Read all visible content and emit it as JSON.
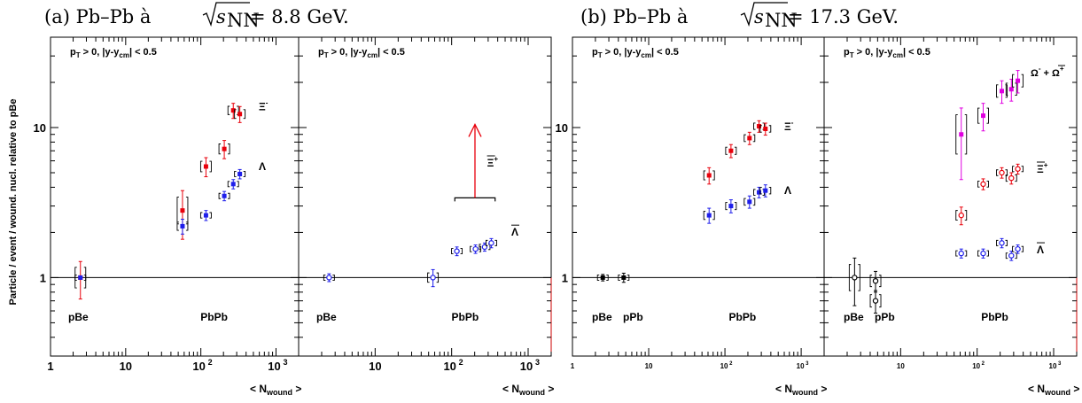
{
  "titles": {
    "a": {
      "prefix": "(a) Pb–Pb à ",
      "sqrt_s": "s",
      "sub": "NN",
      "value": "= 8.8 GeV."
    },
    "b": {
      "prefix": "(b) Pb–Pb à ",
      "sqrt_s": "s",
      "sub": "NN",
      "value": "= 17.3 GeV."
    }
  },
  "ylabel": "Particle / event / wound. nucl. relative to pBe",
  "xlabel": {
    "main": "< N",
    "sub": "wound",
    "end": " >"
  },
  "cut_label": {
    "pt": "p",
    "pt_sub": "T",
    "pt_rest": " > 0,   |y-y",
    "y_sub": "cm",
    "y_rest": "| < 0.5"
  },
  "ytick_labels": [
    "1",
    "10"
  ],
  "xtick_labels": {
    "one": "1",
    "ten": "10",
    "hund_base": "10",
    "hund_exp": "2",
    "thou_base": "10",
    "thou_exp": "3"
  },
  "colors": {
    "xi": "#e8000b",
    "lambda": "#1e1eea",
    "omega": "#e000e0",
    "black": "#000000",
    "ref_line_right": "#cc0000"
  },
  "chart_data": [
    {
      "type": "scatter",
      "panel": "a-left",
      "log_x": true,
      "log_y": true,
      "xlim": [
        1,
        2000
      ],
      "ylim": [
        0.3,
        40
      ],
      "species_labels": [
        {
          "text": "Ξ",
          "sup": "-"
        },
        {
          "text": "Λ",
          "sup": ""
        }
      ],
      "system_labels": [
        "pBe",
        "PbPb"
      ],
      "series": [
        {
          "name": "Ξ-",
          "color": "xi",
          "marker": "filled",
          "points": [
            {
              "x": 2.5,
              "y": 1.0,
              "err": 0.28
            },
            {
              "x": 57,
              "y": 2.8,
              "err": 1.0
            },
            {
              "x": 117,
              "y": 5.5,
              "err": 0.8
            },
            {
              "x": 205,
              "y": 7.2,
              "err": 1.0
            },
            {
              "x": 270,
              "y": 13.0,
              "err": 1.5
            },
            {
              "x": 330,
              "y": 12.3,
              "err": 1.5
            }
          ]
        },
        {
          "name": "Λ",
          "color": "lambda",
          "marker": "filled",
          "points": [
            {
              "x": 2.5,
              "y": 1.0,
              "err": 0.02
            },
            {
              "x": 57,
              "y": 2.2,
              "err": 0.25
            },
            {
              "x": 117,
              "y": 2.6,
              "err": 0.2
            },
            {
              "x": 205,
              "y": 3.5,
              "err": 0.25
            },
            {
              "x": 270,
              "y": 4.2,
              "err": 0.3
            },
            {
              "x": 330,
              "y": 4.9,
              "err": 0.35
            }
          ]
        }
      ]
    },
    {
      "type": "scatter",
      "panel": "a-right",
      "log_x": true,
      "log_y": true,
      "xlim": [
        1,
        2000
      ],
      "ylim": [
        0.3,
        40
      ],
      "species_labels": [
        {
          "text": "Ξ",
          "sup": "+"
        },
        {
          "text": "Λ",
          "sup": ""
        }
      ],
      "system_labels": [
        "pBe",
        "PbPb"
      ],
      "series": [
        {
          "name": "anti-Λ",
          "color": "lambda",
          "marker": "open",
          "points": [
            {
              "x": 2.5,
              "y": 1.0,
              "err": 0.06
            },
            {
              "x": 57,
              "y": 1.0,
              "err": 0.13
            },
            {
              "x": 117,
              "y": 1.5,
              "err": 0.1
            },
            {
              "x": 205,
              "y": 1.55,
              "err": 0.1
            },
            {
              "x": 270,
              "y": 1.6,
              "err": 0.1
            },
            {
              "x": 330,
              "y": 1.7,
              "err": 0.12
            }
          ]
        }
      ],
      "lower_limit": {
        "name": "anti-Ξ+",
        "x_range": [
          110,
          370
        ],
        "y": 3.4,
        "y_arrow_top": 10.5
      }
    },
    {
      "type": "scatter",
      "panel": "b-left",
      "log_x": true,
      "log_y": true,
      "xlim": [
        1,
        2000
      ],
      "ylim": [
        0.3,
        40
      ],
      "species_labels": [
        {
          "text": "Ξ",
          "sup": "-"
        },
        {
          "text": "Λ",
          "sup": ""
        }
      ],
      "system_labels": [
        "pBe",
        "pPb",
        "PbPb"
      ],
      "series": [
        {
          "name": "reference",
          "color": "black",
          "marker": "filled",
          "points": [
            {
              "x": 2.5,
              "y": 1.0,
              "err": 0.05
            },
            {
              "x": 4.7,
              "y": 1.0,
              "err": 0.07
            }
          ]
        },
        {
          "name": "Ξ-",
          "color": "xi",
          "marker": "filled",
          "points": [
            {
              "x": 62,
              "y": 4.8,
              "err": 0.6
            },
            {
              "x": 120,
              "y": 7.0,
              "err": 0.7
            },
            {
              "x": 210,
              "y": 8.5,
              "err": 0.8
            },
            {
              "x": 280,
              "y": 10.2,
              "err": 0.9
            },
            {
              "x": 340,
              "y": 9.8,
              "err": 0.9
            }
          ]
        },
        {
          "name": "Λ",
          "color": "lambda",
          "marker": "filled",
          "points": [
            {
              "x": 62,
              "y": 2.6,
              "err": 0.3
            },
            {
              "x": 120,
              "y": 3.0,
              "err": 0.3
            },
            {
              "x": 210,
              "y": 3.2,
              "err": 0.3
            },
            {
              "x": 280,
              "y": 3.7,
              "err": 0.3
            },
            {
              "x": 340,
              "y": 3.8,
              "err": 0.35
            }
          ]
        }
      ]
    },
    {
      "type": "scatter",
      "panel": "b-right",
      "log_x": true,
      "log_y": true,
      "xlim": [
        1,
        2000
      ],
      "ylim": [
        0.3,
        40
      ],
      "species_labels": [
        {
          "text": "Ω",
          "sup": "-",
          "extra": " + Ω",
          "extra_sup": "+"
        },
        {
          "text": "Ξ",
          "sup": "+"
        },
        {
          "text": "Λ",
          "sup": ""
        }
      ],
      "system_labels": [
        "pBe",
        "pPb",
        "PbPb"
      ],
      "series": [
        {
          "name": "reference",
          "color": "black",
          "marker": "open",
          "points": [
            {
              "x": 2.5,
              "y": 1.0,
              "err": 0.35
            },
            {
              "x": 4.7,
              "y": 0.7,
              "err": 0.12
            },
            {
              "x": 4.7,
              "y": 0.95,
              "err": 0.15
            }
          ]
        },
        {
          "name": "Ω- + anti-Ω+",
          "color": "omega",
          "marker": "filled",
          "points": [
            {
              "x": 62,
              "y": 9.0,
              "err": 4.5
            },
            {
              "x": 120,
              "y": 12.0,
              "err": 2.5
            },
            {
              "x": 210,
              "y": 17.5,
              "err": 3.0
            },
            {
              "x": 280,
              "y": 18.0,
              "err": 3.0
            },
            {
              "x": 340,
              "y": 20.5,
              "err": 3.5
            }
          ]
        },
        {
          "name": "anti-Ξ+",
          "color": "xi",
          "marker": "open",
          "points": [
            {
              "x": 62,
              "y": 2.6,
              "err": 0.35
            },
            {
              "x": 120,
              "y": 4.2,
              "err": 0.35
            },
            {
              "x": 210,
              "y": 5.0,
              "err": 0.4
            },
            {
              "x": 280,
              "y": 4.6,
              "err": 0.4
            },
            {
              "x": 340,
              "y": 5.3,
              "err": 0.4
            }
          ]
        },
        {
          "name": "anti-Λ",
          "color": "lambda",
          "marker": "open",
          "points": [
            {
              "x": 62,
              "y": 1.45,
              "err": 0.1
            },
            {
              "x": 120,
              "y": 1.45,
              "err": 0.1
            },
            {
              "x": 210,
              "y": 1.7,
              "err": 0.12
            },
            {
              "x": 280,
              "y": 1.4,
              "err": 0.1
            },
            {
              "x": 340,
              "y": 1.55,
              "err": 0.1
            }
          ]
        }
      ]
    }
  ]
}
